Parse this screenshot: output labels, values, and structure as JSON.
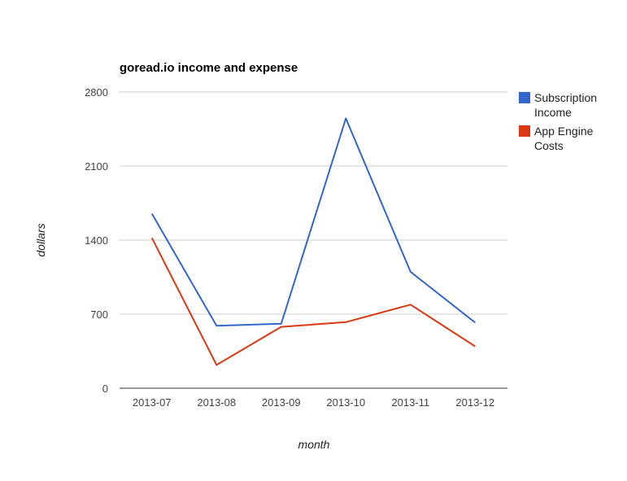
{
  "chart_data": {
    "type": "line",
    "title": "goread.io income and expense",
    "xlabel": "month",
    "ylabel": "dollars",
    "categories": [
      "2013-07",
      "2013-08",
      "2013-09",
      "2013-10",
      "2013-11",
      "2013-12"
    ],
    "yticks": [
      "0",
      "700",
      "1400",
      "2100",
      "2800"
    ],
    "ylim": [
      0,
      2800
    ],
    "grid": true,
    "legend_position": "right",
    "series": [
      {
        "name": "Subscription Income",
        "legend_lines": [
          "Subscription",
          "Income"
        ],
        "color": "#3366cc",
        "values": [
          1650,
          590,
          610,
          2550,
          1100,
          620
        ]
      },
      {
        "name": "App Engine Costs",
        "legend_lines": [
          "App Engine",
          "Costs"
        ],
        "color": "#dc3912",
        "values": [
          1420,
          220,
          580,
          625,
          790,
          395
        ]
      }
    ]
  }
}
